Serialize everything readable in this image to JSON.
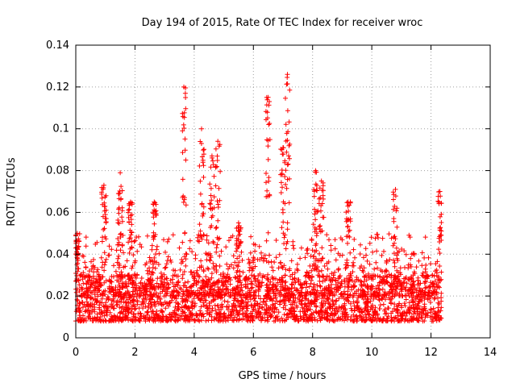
{
  "chart_data": {
    "type": "scatter",
    "title": "Day 194 of 2015, Rate Of TEC Index for receiver wroc",
    "xlabel": "GPS time / hours",
    "ylabel": "ROTI / TECUs",
    "xlim": [
      0,
      14
    ],
    "ylim": [
      0,
      0.14
    ],
    "x_ticks": [
      0,
      2,
      4,
      6,
      8,
      10,
      12,
      14
    ],
    "y_ticks": [
      0,
      0.02,
      0.04,
      0.06,
      0.08,
      0.1,
      0.12,
      0.14
    ],
    "x_tick_labels": [
      "0",
      "2",
      "4",
      "6",
      "8",
      "10",
      "12",
      "14"
    ],
    "y_tick_labels": [
      "0",
      "0.02",
      "0.04",
      "0.06",
      "0.08",
      "0.1",
      "0.12",
      "0.14"
    ],
    "grid": true,
    "marker": "+",
    "color": "#ff0000",
    "series": [
      {
        "name": "ROTI",
        "x_range": [
          0,
          12.35
        ],
        "baseline_range": [
          0.008,
          0.03
        ],
        "peaks": [
          {
            "x": 0.05,
            "y": 0.05
          },
          {
            "x": 0.95,
            "y": 0.073
          },
          {
            "x": 1.5,
            "y": 0.079
          },
          {
            "x": 1.85,
            "y": 0.065
          },
          {
            "x": 2.65,
            "y": 0.065
          },
          {
            "x": 3.65,
            "y": 0.12
          },
          {
            "x": 4.25,
            "y": 0.1
          },
          {
            "x": 4.6,
            "y": 0.087
          },
          {
            "x": 4.8,
            "y": 0.094
          },
          {
            "x": 5.5,
            "y": 0.055
          },
          {
            "x": 6.5,
            "y": 0.115
          },
          {
            "x": 7.15,
            "y": 0.126
          },
          {
            "x": 7.0,
            "y": 0.091
          },
          {
            "x": 8.1,
            "y": 0.08
          },
          {
            "x": 8.3,
            "y": 0.075
          },
          {
            "x": 9.2,
            "y": 0.065
          },
          {
            "x": 10.8,
            "y": 0.071
          },
          {
            "x": 12.3,
            "y": 0.07
          }
        ]
      }
    ]
  }
}
